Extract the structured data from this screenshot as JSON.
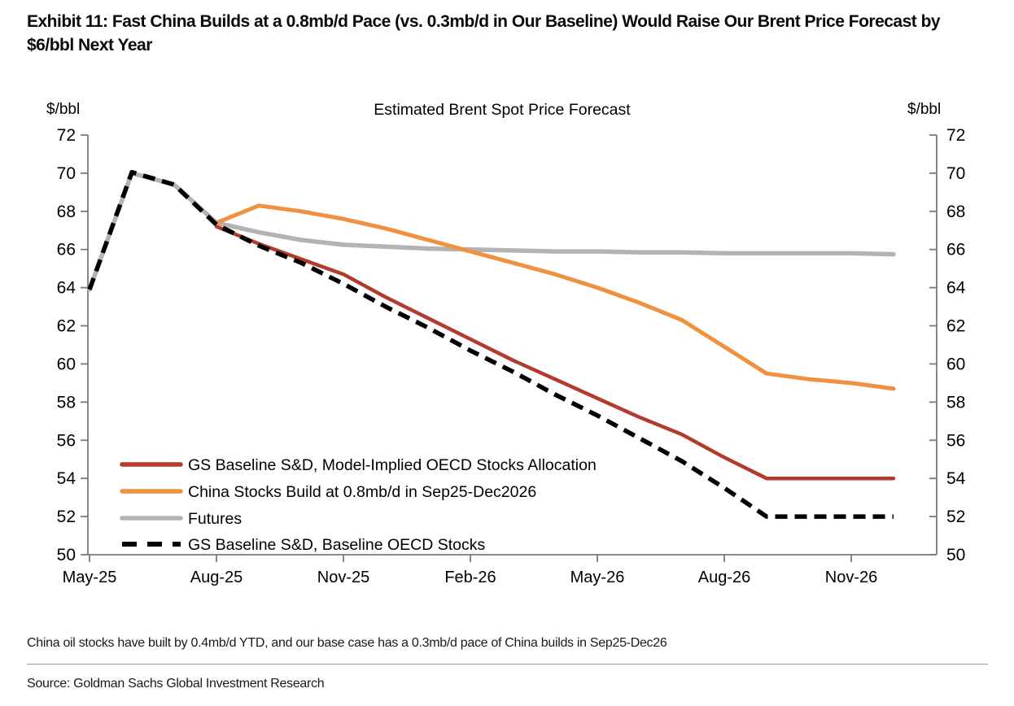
{
  "header": {
    "title": "Exhibit 11: Fast China Builds at a 0.8mb/d Pace (vs. 0.3mb/d in Our Baseline) Would Raise Our Brent Price Forecast by $6/bbl Next Year"
  },
  "footer": {
    "note": "China oil stocks have built by 0.4mb/d YTD, and our base case has a 0.3mb/d pace of China builds in Sep25-Dec26",
    "source": "Source: Goldman Sachs Global Investment Research"
  },
  "chart_data": {
    "type": "line",
    "title": "Estimated Brent Spot Price Forecast",
    "ylabel_left": "$/bbl",
    "ylabel_right": "$/bbl",
    "ylim": [
      50,
      72
    ],
    "ytick_step": 2,
    "grid": false,
    "legend_position": "inside bottom-left",
    "x": [
      "May-25",
      "Jun-25",
      "Jul-25",
      "Aug-25",
      "Sep-25",
      "Oct-25",
      "Nov-25",
      "Dec-25",
      "Jan-26",
      "Feb-26",
      "Mar-26",
      "Apr-26",
      "May-26",
      "Jun-26",
      "Jul-26",
      "Aug-26",
      "Sep-26",
      "Oct-26",
      "Nov-26",
      "Dec-26"
    ],
    "x_tick_labels": [
      "May-25",
      "Aug-25",
      "Nov-25",
      "Feb-26",
      "May-26",
      "Aug-26",
      "Nov-26"
    ],
    "x_tick_indices": [
      0,
      3,
      6,
      9,
      12,
      15,
      18
    ],
    "series": [
      {
        "name": "GS Baseline S&D, Model-Implied OECD Stocks Allocation",
        "color": "#b23b2c",
        "line_style": "solid",
        "values": [
          null,
          null,
          null,
          67.2,
          66.3,
          65.5,
          64.7,
          63.5,
          62.4,
          61.3,
          60.2,
          59.2,
          58.2,
          57.2,
          56.3,
          55.1,
          54.0,
          54.0,
          54.0,
          54.0
        ]
      },
      {
        "name": "China Stocks Build at 0.8mb/d in Sep25-Dec2026",
        "color": "#ef913f",
        "line_style": "solid",
        "values": [
          null,
          null,
          null,
          67.4,
          68.3,
          68.0,
          67.6,
          67.1,
          66.5,
          65.9,
          65.3,
          64.7,
          64.0,
          63.2,
          62.3,
          60.9,
          59.5,
          59.2,
          59.0,
          58.7
        ]
      },
      {
        "name": "Futures",
        "color": "#b3b3b3",
        "line_style": "solid",
        "values": [
          63.9,
          70.0,
          69.4,
          67.4,
          66.9,
          66.5,
          66.25,
          66.15,
          66.05,
          66.0,
          65.95,
          65.9,
          65.9,
          65.85,
          65.85,
          65.8,
          65.8,
          65.8,
          65.8,
          65.75
        ]
      },
      {
        "name": "GS Baseline S&D, Baseline OECD Stocks",
        "color": "#000000",
        "line_style": "dashed",
        "values": [
          63.9,
          70.05,
          69.4,
          67.3,
          66.2,
          65.3,
          64.2,
          63.0,
          61.9,
          60.7,
          59.6,
          58.4,
          57.3,
          56.1,
          54.9,
          53.5,
          52.0,
          52.0,
          52.0,
          52.0
        ]
      }
    ]
  }
}
